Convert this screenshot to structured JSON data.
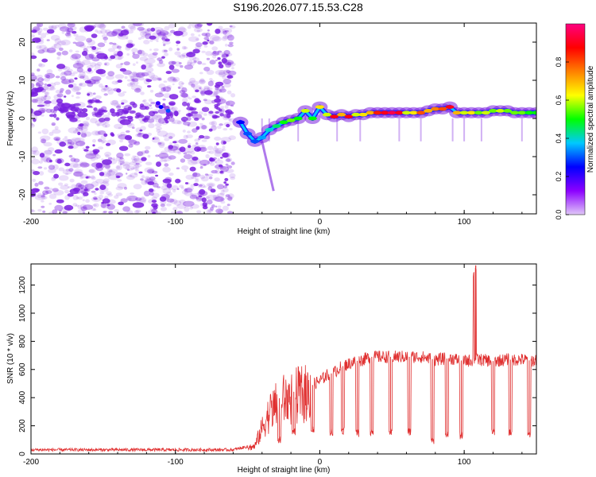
{
  "title": "S196.2026.077.15.53.C28",
  "colors": {
    "scatter": "#7a1fe0",
    "line": "#e03030",
    "axis": "#000000",
    "background": "#ffffff"
  },
  "chart_data": [
    {
      "type": "heatmap",
      "name": "spectrogram",
      "xlabel": "Height of straight line (km)",
      "ylabel": "Frequency (Hz)",
      "xlim": [
        -200,
        150
      ],
      "ylim": [
        -25,
        25
      ],
      "xticks": [
        -200,
        -100,
        0,
        100
      ],
      "yticks": [
        -20,
        -10,
        0,
        10,
        20
      ],
      "xtick_labels": [
        "-200",
        "-100",
        "0",
        "100"
      ],
      "ytick_labels": [
        "-20",
        "-10",
        "0",
        "10",
        "20"
      ],
      "noise_region_x": [
        -200,
        -60
      ],
      "ridge": {
        "x": [
          -55,
          -50,
          -45,
          -40,
          -35,
          -30,
          -25,
          -20,
          -15,
          -10,
          -5,
          0,
          5,
          10,
          15,
          20,
          25,
          30,
          35,
          40,
          45,
          50,
          55,
          60,
          65,
          70,
          75,
          80,
          85,
          90,
          95,
          100,
          105,
          110,
          115,
          120,
          125,
          130,
          135,
          140,
          145,
          150
        ],
        "freq": [
          -1,
          -4,
          -6,
          -5,
          -3,
          -2,
          -1,
          -0.5,
          0,
          2,
          0,
          3,
          1,
          0.5,
          1,
          0.5,
          1,
          1,
          1.5,
          1.5,
          1.5,
          1.5,
          1.5,
          1.5,
          1.5,
          1.5,
          2,
          2.5,
          2.5,
          3,
          1.5,
          1.5,
          1.5,
          1.5,
          1.5,
          2,
          2,
          2,
          1.5,
          1.5,
          1.5,
          1.5
        ],
        "amplitude": [
          0.25,
          0.3,
          0.3,
          0.35,
          0.4,
          0.45,
          0.5,
          0.55,
          0.5,
          0.6,
          0.5,
          0.65,
          0.6,
          0.9,
          0.7,
          0.9,
          0.6,
          0.65,
          0.7,
          0.85,
          0.9,
          0.95,
          0.9,
          0.6,
          0.65,
          0.8,
          0.7,
          0.75,
          0.8,
          0.9,
          0.7,
          0.6,
          0.65,
          0.55,
          0.6,
          0.55,
          0.6,
          0.55,
          0.55,
          0.55,
          0.5,
          0.5
        ]
      },
      "colorbar": {
        "label": "Normalized spectral amplitude",
        "range": [
          0,
          1
        ],
        "ticks": [
          0.0,
          0.2,
          0.4,
          0.6,
          0.8
        ],
        "tick_labels": [
          "0.0",
          "0.2",
          "0.4",
          "0.6",
          "0.8"
        ],
        "stops": [
          "#e0c8f8",
          "#8c00ff",
          "#0000ff",
          "#00c8ff",
          "#00ff00",
          "#ffff00",
          "#ff8000",
          "#ff0000",
          "#ff0080"
        ]
      }
    },
    {
      "type": "line",
      "name": "snr",
      "xlabel": "Height of straight line (km)",
      "ylabel": "SNR (10 * v/v)",
      "xlim": [
        -200,
        150
      ],
      "ylim": [
        0,
        1350
      ],
      "xticks": [
        -200,
        -100,
        0,
        100
      ],
      "yticks": [
        0,
        200,
        400,
        600,
        800,
        1000,
        1200
      ],
      "xtick_labels": [
        "-200",
        "-100",
        "0",
        "100"
      ],
      "ytick_labels": [
        "0",
        "200",
        "400",
        "600",
        "800",
        "1000",
        "1200"
      ],
      "envelope": {
        "x": [
          -200,
          -60,
          -45,
          -40,
          -35,
          -30,
          -25,
          -20,
          -15,
          -10,
          -5,
          0,
          5,
          10,
          15,
          20,
          25,
          30,
          35,
          40,
          50,
          60,
          70,
          80,
          90,
          100,
          110,
          120,
          130,
          140,
          150
        ],
        "y": [
          25,
          25,
          60,
          200,
          320,
          380,
          420,
          430,
          460,
          470,
          490,
          520,
          560,
          580,
          620,
          640,
          660,
          670,
          690,
          690,
          690,
          690,
          690,
          670,
          680,
          660,
          670,
          660,
          670,
          670,
          660
        ]
      },
      "dips": [
        {
          "x": -28,
          "y": 100
        },
        {
          "x": -18,
          "y": 150
        },
        {
          "x": -5,
          "y": 170
        },
        {
          "x": 8,
          "y": 160
        },
        {
          "x": 16,
          "y": 170
        },
        {
          "x": 26,
          "y": 150
        },
        {
          "x": 36,
          "y": 160
        },
        {
          "x": 49,
          "y": 150
        },
        {
          "x": 62,
          "y": 155
        },
        {
          "x": 78,
          "y": 90
        },
        {
          "x": 88,
          "y": 150
        },
        {
          "x": 98,
          "y": 130
        },
        {
          "x": 120,
          "y": 160
        },
        {
          "x": 132,
          "y": 150
        },
        {
          "x": 145,
          "y": 140
        }
      ],
      "spike": {
        "x": 108,
        "y": 1340
      }
    }
  ]
}
